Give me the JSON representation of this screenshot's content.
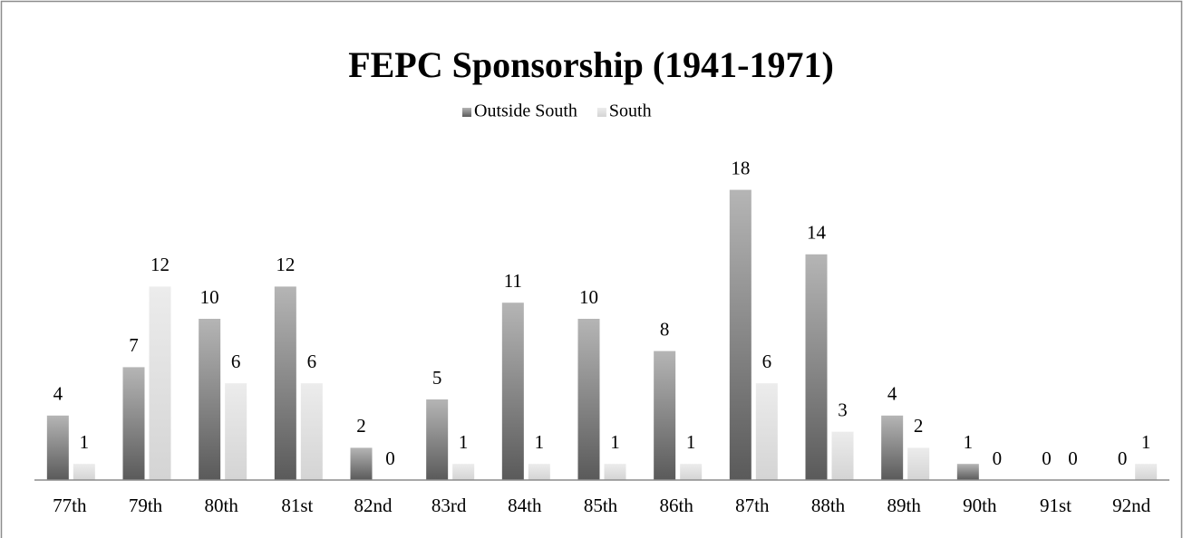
{
  "chart_data": {
    "type": "bar",
    "title": "FEPC Sponsorship (1941-1971)",
    "categories": [
      "77th",
      "79th",
      "80th",
      "81st",
      "82nd",
      "83rd",
      "84th",
      "85th",
      "86th",
      "87th",
      "88th",
      "89th",
      "90th",
      "91st",
      "92nd"
    ],
    "series": [
      {
        "name": "Outside South",
        "color": "#5a5a5a",
        "values": [
          4,
          7,
          10,
          12,
          2,
          5,
          11,
          10,
          8,
          18,
          14,
          4,
          1,
          0,
          0
        ]
      },
      {
        "name": "South",
        "color": "#d4d4d4",
        "values": [
          1,
          12,
          6,
          6,
          0,
          1,
          1,
          1,
          1,
          6,
          3,
          2,
          0,
          0,
          1
        ]
      }
    ],
    "legend": "top"
  }
}
